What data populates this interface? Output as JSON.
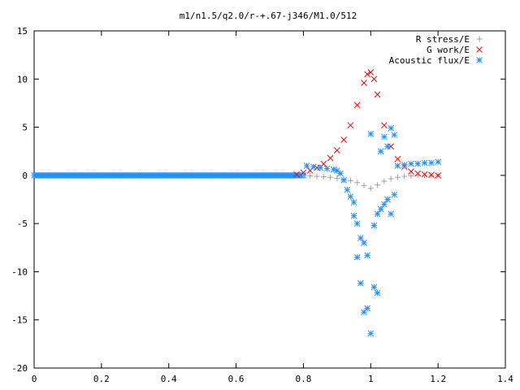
{
  "chart_data": {
    "type": "scatter",
    "title": "m1/n1.5/q2.0/r-+.67-j346/M1.0/512",
    "xlabel": "",
    "ylabel": "",
    "xlim": [
      0,
      1.4
    ],
    "ylim": [
      -20,
      15
    ],
    "x_ticks": [
      0,
      0.2,
      0.4,
      0.6,
      0.8,
      1,
      1.2,
      1.4
    ],
    "y_ticks": [
      -20,
      -15,
      -10,
      -5,
      0,
      5,
      10,
      15
    ],
    "x_tick_labels": [
      "0",
      "0.2",
      "0.4",
      "0.6",
      "0.8",
      "1",
      "1.2",
      "1.4"
    ],
    "y_tick_labels": [
      "-20",
      "-15",
      "-10",
      "-5",
      "0",
      "5",
      "10",
      "15"
    ],
    "grid": false,
    "legend_position": "top-right",
    "series": [
      {
        "name": "R stress/E",
        "marker": "+",
        "color": "#a0a0a0",
        "x": [
          0.8,
          0.82,
          0.84,
          0.86,
          0.88,
          0.9,
          0.92,
          0.94,
          0.96,
          0.98,
          1.0,
          1.02,
          1.04,
          1.06,
          1.08,
          1.1,
          1.12,
          1.14,
          1.16,
          1.18,
          1.2
        ],
        "y": [
          0,
          -0.05,
          -0.1,
          -0.15,
          -0.2,
          -0.3,
          -0.4,
          -0.55,
          -0.75,
          -1.05,
          -1.35,
          -1.0,
          -0.6,
          -0.35,
          -0.2,
          -0.1,
          -0.05,
          0,
          0,
          0,
          0
        ]
      },
      {
        "name": "G work/E",
        "marker": "x",
        "color": "#ff0000",
        "x": [
          0.78,
          0.8,
          0.82,
          0.84,
          0.86,
          0.88,
          0.9,
          0.92,
          0.94,
          0.96,
          0.98,
          0.99,
          1.0,
          1.01,
          1.02,
          1.04,
          1.06,
          1.08,
          1.1,
          1.12,
          1.14,
          1.16,
          1.18,
          1.2
        ],
        "y": [
          0.1,
          0.3,
          0.5,
          0.8,
          1.2,
          1.8,
          2.6,
          3.7,
          5.2,
          7.3,
          9.6,
          10.5,
          10.7,
          10.0,
          8.4,
          5.2,
          3.0,
          1.7,
          0.9,
          0.4,
          0.2,
          0.1,
          0.05,
          0
        ]
      },
      {
        "name": "Acoustic flux/E",
        "marker": "*",
        "color": "#1e90ff",
        "x": [
          0.81,
          0.83,
          0.85,
          0.87,
          0.89,
          0.9,
          0.91,
          0.92,
          0.93,
          0.94,
          0.95,
          0.95,
          0.96,
          0.96,
          0.97,
          0.97,
          0.98,
          0.98,
          0.99,
          0.99,
          1.0,
          1.0,
          1.01,
          1.01,
          1.02,
          1.02,
          1.03,
          1.03,
          1.04,
          1.04,
          1.05,
          1.05,
          1.06,
          1.06,
          1.07,
          1.07,
          1.08,
          1.1,
          1.12,
          1.14,
          1.16,
          1.18,
          1.2
        ],
        "y": [
          1.0,
          0.9,
          0.8,
          0.7,
          0.6,
          0.5,
          0.2,
          -0.5,
          -1.5,
          -2.2,
          -2.8,
          -4.2,
          -5.0,
          -8.5,
          -6.5,
          -11.2,
          -7.0,
          -14.2,
          -8.3,
          -13.8,
          -16.4,
          4.3,
          -11.6,
          -5.2,
          -12.2,
          -4.0,
          -3.5,
          2.5,
          -3.0,
          4.0,
          -2.5,
          3.0,
          -4.0,
          4.9,
          -2.0,
          4.2,
          1.0,
          1.1,
          1.2,
          1.2,
          1.3,
          1.3,
          1.4
        ]
      }
    ]
  }
}
